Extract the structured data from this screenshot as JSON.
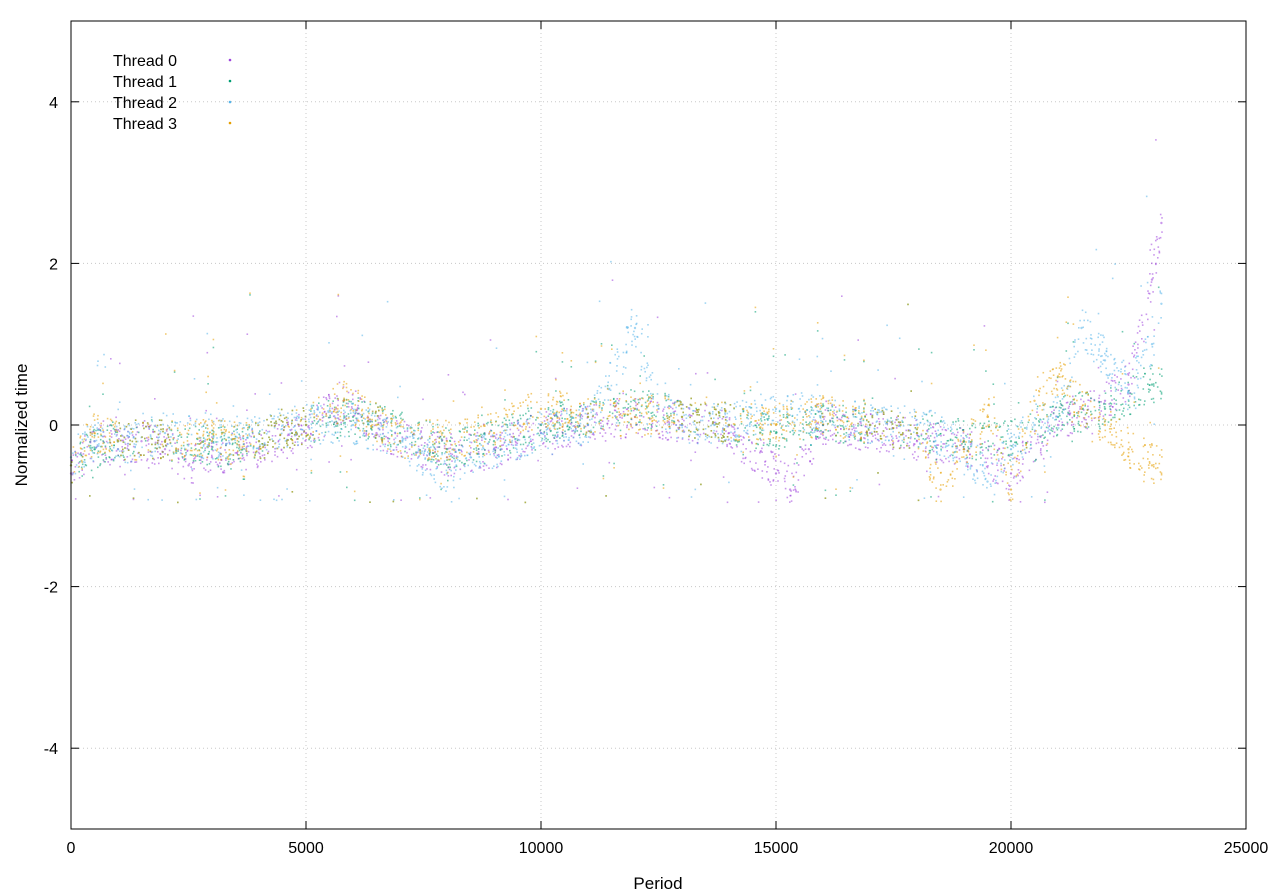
{
  "chart_data": {
    "type": "scatter",
    "title": "",
    "xlabel": "Period",
    "ylabel": "Normalized time",
    "xlim": [
      0,
      25000
    ],
    "ylim": [
      -5,
      5
    ],
    "xticks": [
      0,
      5000,
      10000,
      15000,
      20000,
      25000
    ],
    "yticks": [
      -4,
      -2,
      0,
      2,
      4
    ],
    "xtick_labels": [
      "0",
      "5000",
      "10000",
      "15000",
      "20000",
      "25000"
    ],
    "ytick_labels": [
      "-4",
      "-2",
      "0",
      "2",
      "4"
    ],
    "grid": true,
    "grid_style": "dotted",
    "legend_position": "top-left",
    "point_count_per_series": 23200,
    "series": [
      {
        "name": "Thread 0",
        "color": "#9e44dd",
        "marker": "dot",
        "points": [
          [
            0,
            -0.6
          ],
          [
            500,
            -0.2
          ],
          [
            1000,
            -0.3
          ],
          [
            1500,
            -0.2
          ],
          [
            2000,
            -0.3
          ],
          [
            2500,
            -0.5
          ],
          [
            3000,
            -0.4
          ],
          [
            4000,
            -0.3
          ],
          [
            5000,
            -0.1
          ],
          [
            5800,
            0.3
          ],
          [
            6500,
            -0.1
          ],
          [
            7000,
            -0.2
          ],
          [
            8000,
            -0.4
          ],
          [
            9000,
            -0.3
          ],
          [
            10000,
            -0.1
          ],
          [
            11000,
            0.0
          ],
          [
            12000,
            0.1
          ],
          [
            13000,
            0.0
          ],
          [
            14000,
            -0.1
          ],
          [
            15000,
            -0.6
          ],
          [
            15300,
            -0.8
          ],
          [
            15700,
            -0.3
          ],
          [
            16000,
            0.0
          ],
          [
            17000,
            -0.1
          ],
          [
            18000,
            -0.2
          ],
          [
            19000,
            -0.3
          ],
          [
            20000,
            -0.6
          ],
          [
            21000,
            0.0
          ],
          [
            22000,
            0.3
          ],
          [
            22500,
            0.5
          ],
          [
            23000,
            1.8
          ],
          [
            23200,
            2.5
          ]
        ]
      },
      {
        "name": "Thread 1",
        "color": "#009e73",
        "marker": "dot",
        "points": [
          [
            0,
            -0.5
          ],
          [
            500,
            -0.3
          ],
          [
            1000,
            -0.2
          ],
          [
            2000,
            -0.2
          ],
          [
            3000,
            -0.3
          ],
          [
            4000,
            -0.2
          ],
          [
            5000,
            0.0
          ],
          [
            6000,
            0.1
          ],
          [
            7000,
            -0.1
          ],
          [
            8000,
            -0.3
          ],
          [
            9000,
            -0.2
          ],
          [
            10000,
            0.0
          ],
          [
            11000,
            0.1
          ],
          [
            12000,
            0.2
          ],
          [
            13000,
            0.1
          ],
          [
            14000,
            0.0
          ],
          [
            15000,
            -0.1
          ],
          [
            16000,
            0.0
          ],
          [
            17000,
            0.0
          ],
          [
            18000,
            -0.1
          ],
          [
            19000,
            -0.2
          ],
          [
            20000,
            -0.2
          ],
          [
            21000,
            0.1
          ],
          [
            22000,
            0.2
          ],
          [
            23000,
            0.5
          ]
        ]
      },
      {
        "name": "Thread 2",
        "color": "#56b4e9",
        "marker": "dot",
        "points": [
          [
            0,
            -0.4
          ],
          [
            500,
            -0.2
          ],
          [
            1000,
            -0.3
          ],
          [
            2000,
            -0.1
          ],
          [
            3000,
            -0.2
          ],
          [
            4000,
            -0.1
          ],
          [
            5000,
            0.0
          ],
          [
            6000,
            0.0
          ],
          [
            7000,
            -0.2
          ],
          [
            8000,
            -0.6
          ],
          [
            8500,
            -0.4
          ],
          [
            9000,
            -0.3
          ],
          [
            10000,
            -0.1
          ],
          [
            11000,
            0.0
          ],
          [
            12000,
            1.2
          ],
          [
            12500,
            0.2
          ],
          [
            13000,
            0.0
          ],
          [
            14000,
            0.0
          ],
          [
            15000,
            0.2
          ],
          [
            16000,
            0.1
          ],
          [
            17000,
            0.0
          ],
          [
            18000,
            0.0
          ],
          [
            19000,
            -0.3
          ],
          [
            19500,
            -0.7
          ],
          [
            20000,
            -0.3
          ],
          [
            20500,
            0.0
          ],
          [
            21000,
            0.1
          ],
          [
            21500,
            1.2
          ],
          [
            22000,
            0.8
          ],
          [
            22500,
            0.4
          ],
          [
            23000,
            1.0
          ],
          [
            23200,
            1.5
          ]
        ]
      },
      {
        "name": "Thread 3",
        "color": "#e69f00",
        "marker": "dot",
        "points": [
          [
            0,
            -0.5
          ],
          [
            500,
            -0.1
          ],
          [
            1000,
            -0.2
          ],
          [
            2000,
            -0.2
          ],
          [
            3000,
            -0.2
          ],
          [
            4000,
            -0.2
          ],
          [
            5000,
            0.0
          ],
          [
            5800,
            0.3
          ],
          [
            6500,
            0.0
          ],
          [
            7000,
            -0.2
          ],
          [
            8000,
            -0.2
          ],
          [
            9000,
            -0.1
          ],
          [
            10000,
            0.2
          ],
          [
            11000,
            0.1
          ],
          [
            12000,
            0.1
          ],
          [
            13000,
            0.1
          ],
          [
            14000,
            0.0
          ],
          [
            15000,
            0.0
          ],
          [
            16000,
            0.1
          ],
          [
            17000,
            0.0
          ],
          [
            18000,
            -0.1
          ],
          [
            18500,
            -0.8
          ],
          [
            19000,
            -0.3
          ],
          [
            19500,
            0.1
          ],
          [
            20000,
            -0.8
          ],
          [
            20500,
            0.3
          ],
          [
            21000,
            0.6
          ],
          [
            21500,
            0.2
          ],
          [
            22000,
            0.0
          ],
          [
            22500,
            -0.3
          ],
          [
            23000,
            -0.5
          ]
        ]
      }
    ]
  }
}
